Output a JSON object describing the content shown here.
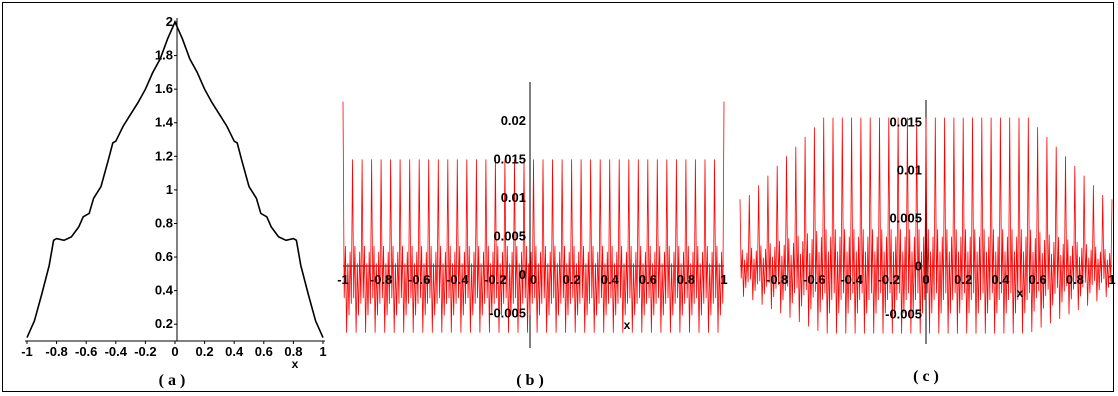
{
  "chart_data": [
    {
      "type": "line",
      "panel": "a",
      "caption": "( a )",
      "xlabel": "x",
      "ylabel": "",
      "xlim": [
        -1,
        1
      ],
      "ylim": [
        0.1,
        2
      ],
      "x_ticks": [
        "-1",
        "-0.8",
        "-0.6",
        "-0.4",
        "-0.2",
        "0",
        "0.2",
        "0.4",
        "0.6",
        "0.8",
        "1"
      ],
      "y_ticks": [
        "0.2",
        "0.4",
        "0.6",
        "0.8",
        "1",
        "1.2",
        "1.4",
        "1.6",
        "1.8",
        "2"
      ],
      "color": "#000000",
      "series": [
        {
          "x": [
            -1,
            -0.95,
            -0.9,
            -0.85,
            -0.82,
            -0.8,
            -0.75,
            -0.7,
            -0.65,
            -0.62,
            -0.58,
            -0.55,
            -0.5,
            -0.45,
            -0.42,
            -0.4,
            -0.35,
            -0.3,
            -0.25,
            -0.2,
            -0.15,
            -0.1,
            -0.05,
            0,
            0.05,
            0.1,
            0.15,
            0.2,
            0.25,
            0.3,
            0.35,
            0.4,
            0.42,
            0.45,
            0.5,
            0.55,
            0.58,
            0.62,
            0.65,
            0.7,
            0.75,
            0.8,
            0.82,
            0.85,
            0.9,
            0.95,
            1
          ],
          "y": [
            0.12,
            0.22,
            0.38,
            0.55,
            0.7,
            0.71,
            0.7,
            0.72,
            0.78,
            0.84,
            0.86,
            0.95,
            1.02,
            1.18,
            1.28,
            1.29,
            1.38,
            1.45,
            1.52,
            1.6,
            1.7,
            1.78,
            1.9,
            2.0,
            1.9,
            1.78,
            1.7,
            1.6,
            1.52,
            1.45,
            1.38,
            1.29,
            1.28,
            1.18,
            1.02,
            0.95,
            0.86,
            0.84,
            0.78,
            0.72,
            0.7,
            0.71,
            0.7,
            0.55,
            0.38,
            0.22,
            0.12
          ]
        }
      ]
    },
    {
      "type": "line",
      "panel": "b",
      "caption": "( b )",
      "xlabel": "x",
      "ylabel": "",
      "xlim": [
        -1,
        1
      ],
      "ylim": [
        -0.01,
        0.024
      ],
      "x_ticks": [
        "-1",
        "-0.8",
        "-0.6",
        "-0.4",
        "-0.2",
        "0",
        "0.2",
        "0.4",
        "0.6",
        "0.8",
        "1"
      ],
      "y_ticks": [
        "-0.005",
        "0",
        "0.005",
        "0.01",
        "0.015",
        "0.02"
      ],
      "color": "#ff0000",
      "oscillation": {
        "cycles": 40,
        "peak": 0.015,
        "trough": -0.0075,
        "endpoint_spike": 0.0225
      }
    },
    {
      "type": "line",
      "panel": "c",
      "caption": "( c )",
      "xlabel": "x",
      "ylabel": "",
      "xlim": [
        -1,
        1
      ],
      "ylim": [
        -0.0085,
        0.0165
      ],
      "x_ticks": [
        "-0.8",
        "-0.6",
        "-0.4",
        "-0.2",
        "0",
        "0.2",
        "0.4",
        "0.6",
        "0.8",
        "1"
      ],
      "y_ticks": [
        "-0.005",
        "0",
        "0.005",
        "0.01",
        "0.015"
      ],
      "color": "#ff0000",
      "oscillation": {
        "cycles": 40,
        "peak": 0.0155,
        "trough": -0.007,
        "edge_amplitude": 0.007
      }
    }
  ]
}
